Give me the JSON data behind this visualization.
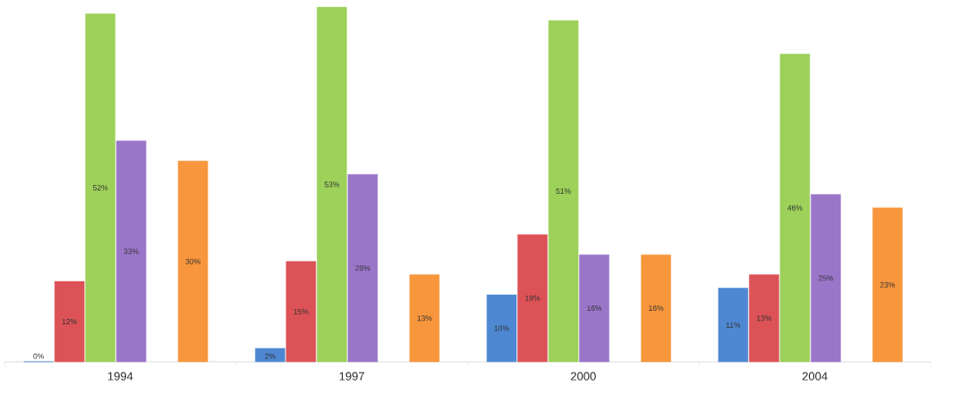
{
  "chart_data": {
    "type": "bar",
    "categories": [
      "1994",
      "1997",
      "2000",
      "2004"
    ],
    "series": [
      {
        "color": "#4f88d2",
        "values": [
          0,
          2,
          10,
          11
        ],
        "value_labels": [
          "0%",
          "2%",
          "10%",
          "11%"
        ]
      },
      {
        "color": "#dc5256",
        "values": [
          12,
          15,
          19,
          13
        ],
        "value_labels": [
          "12%",
          "15%",
          "19%",
          "13%"
        ]
      },
      {
        "color": "#9dd15a",
        "values": [
          52,
          53,
          51,
          46
        ],
        "value_labels": [
          "52%",
          "53%",
          "51%",
          "46%"
        ]
      },
      {
        "color": "#9a76c9",
        "values": [
          33,
          28,
          16,
          25
        ],
        "value_labels": [
          "33%",
          "28%",
          "16%",
          "25%"
        ]
      },
      {
        "values": [
          null,
          null,
          null,
          null
        ]
      },
      {
        "color": "#f7963c",
        "values": [
          30,
          13,
          16,
          23
        ],
        "value_labels": [
          "30%",
          "13%",
          "16%",
          "23%"
        ]
      }
    ],
    "grid": false,
    "tick_labels": "x"
  }
}
